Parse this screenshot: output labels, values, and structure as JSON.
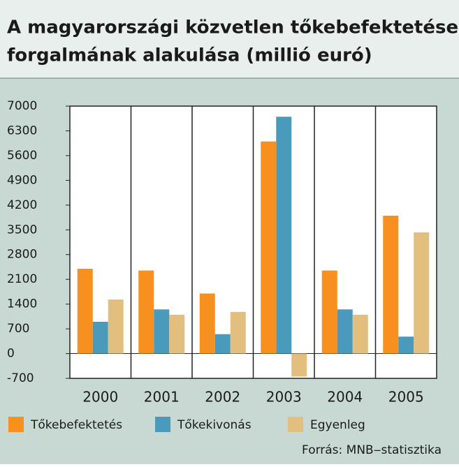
{
  "chart_data": {
    "type": "bar",
    "title": [
      "A magyarországi közvetlen tőkebefektetések",
      "forgalmának alakulása (millió euró)"
    ],
    "categories": [
      "2000",
      "2001",
      "2002",
      "2003",
      "2004",
      "2005"
    ],
    "series": [
      {
        "name": "Tőkebefektetés",
        "color": "#f7901e",
        "values": [
          2400,
          2350,
          1700,
          6000,
          2350,
          3900
        ]
      },
      {
        "name": "Tőkekivonás",
        "color": "#4a9bbb",
        "values": [
          900,
          1250,
          550,
          6700,
          1250,
          480
        ]
      },
      {
        "name": "Egyenleg",
        "color": "#e3bf7f",
        "values": [
          1530,
          1100,
          1180,
          -650,
          1100,
          3430
        ]
      }
    ],
    "ylim": [
      -700,
      7000
    ],
    "yticks": [
      -700,
      0,
      700,
      1400,
      2100,
      2800,
      3500,
      4200,
      4900,
      5600,
      6300,
      7000
    ],
    "grid": false,
    "source": "Forrás: MNB‒statisztika"
  }
}
